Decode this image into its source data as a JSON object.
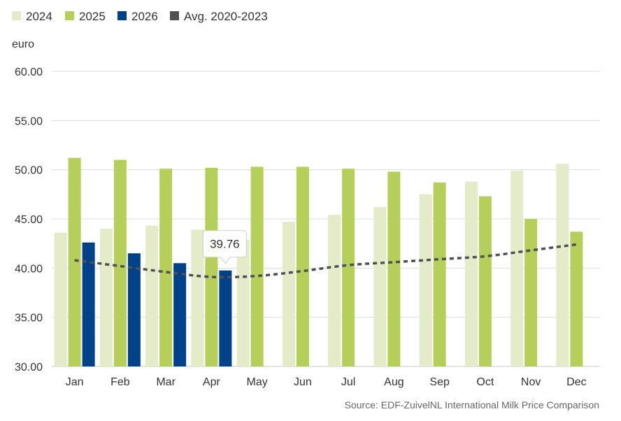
{
  "chart_data": {
    "type": "bar",
    "categories": [
      "Jan",
      "Feb",
      "Mar",
      "Apr",
      "May",
      "Jun",
      "Jul",
      "Aug",
      "Sep",
      "Oct",
      "Nov",
      "Dec"
    ],
    "series": [
      {
        "name": "2024",
        "kind": "bar",
        "color": "#e3ebc8",
        "values": [
          43.6,
          44.0,
          44.3,
          43.9,
          42.9,
          44.7,
          45.4,
          46.2,
          47.5,
          48.8,
          49.9,
          50.6
        ]
      },
      {
        "name": "2025",
        "kind": "bar",
        "color": "#b6cf5a",
        "values": [
          51.2,
          51.0,
          50.1,
          50.2,
          50.3,
          50.3,
          50.1,
          49.8,
          48.7,
          47.3,
          45.0,
          43.7
        ]
      },
      {
        "name": "2026",
        "kind": "bar",
        "color": "#00428a",
        "values": [
          42.6,
          41.5,
          40.5,
          39.76,
          null,
          null,
          null,
          null,
          null,
          null,
          null,
          null
        ]
      },
      {
        "name": "Avg. 2020-2023",
        "kind": "line",
        "color": "#505050",
        "values": [
          40.8,
          40.2,
          39.6,
          39.1,
          39.2,
          39.7,
          40.3,
          40.6,
          40.9,
          41.2,
          41.8,
          42.4
        ]
      }
    ],
    "ylabel": "euro",
    "ylim": [
      30,
      60
    ],
    "yticks": [
      "60.00",
      "55.00",
      "50.00",
      "45.00",
      "40.00",
      "35.00",
      "30.00"
    ],
    "grid": true,
    "legend_position": "top-left",
    "tooltip": {
      "series": "2026",
      "category": "Apr",
      "value": "39.76"
    },
    "source": "Source: EDF-ZuivelNL International Milk Price Comparison"
  }
}
